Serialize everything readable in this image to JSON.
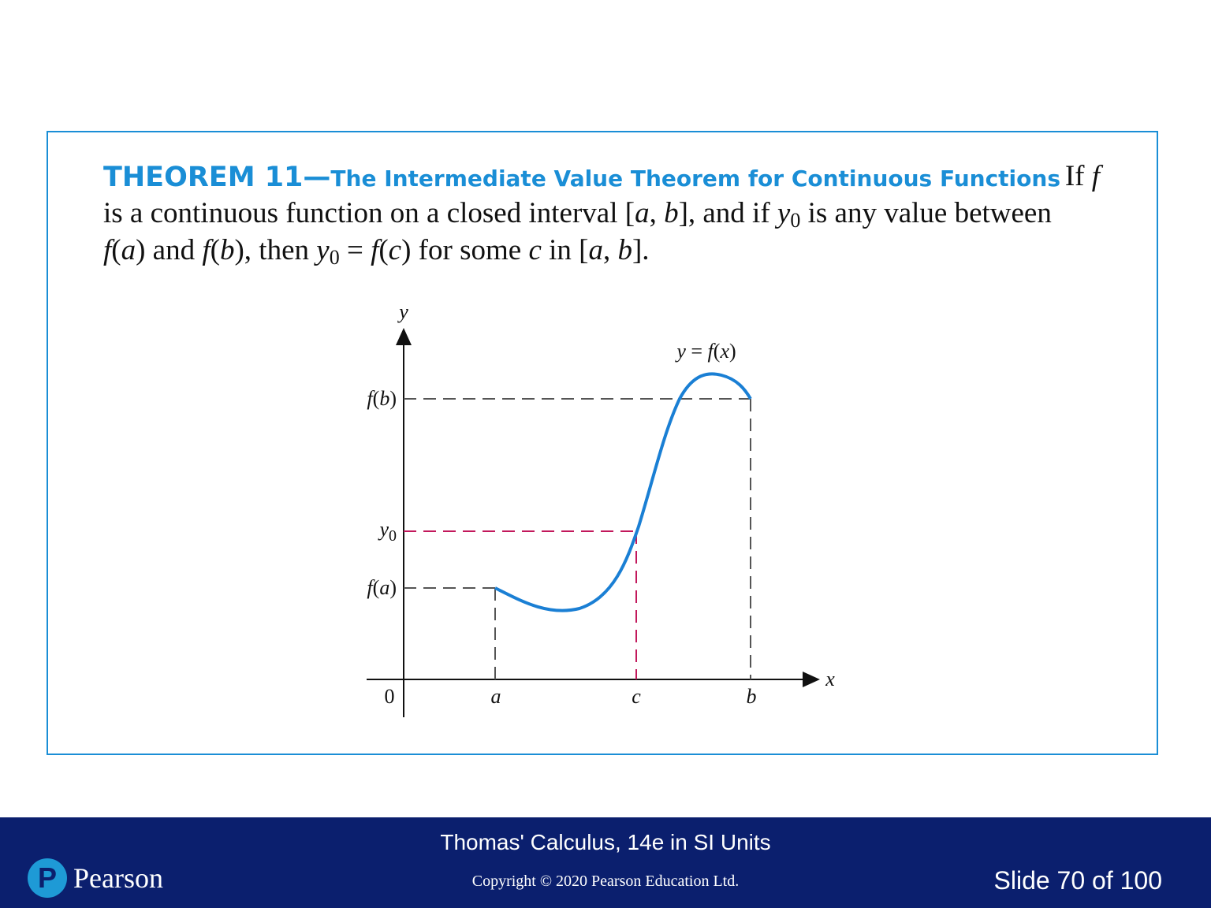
{
  "theorem": {
    "heading_num": "THEOREM 11—",
    "heading_title": "The Intermediate Value Theorem for Continuous Functions",
    "line1_tail": "If f",
    "line2": "is a continuous function on a closed interval [a, b], and if y0 is any value between",
    "line3": "f(a) and f(b), then y0 = f(c) for some c in [a, b]."
  },
  "graph": {
    "y_axis_label": "y",
    "x_axis_label": "x",
    "origin_label": "0",
    "curve_label": "y = f(x)",
    "ytick_fb": "f(b)",
    "ytick_y0": "y0",
    "ytick_fa": "f(a)",
    "xtick_a": "a",
    "xtick_c": "c",
    "xtick_b": "b",
    "colors": {
      "curve": "#1a7fd4",
      "guide": "#555555",
      "highlight": "#c2185b"
    }
  },
  "footer": {
    "title": "Thomas' Calculus, 14e in SI Units",
    "copyright": "Copyright © 2020 Pearson Education Ltd.",
    "slide": "Slide 70 of 100",
    "logo_letter": "P",
    "logo_word": "Pearson"
  }
}
